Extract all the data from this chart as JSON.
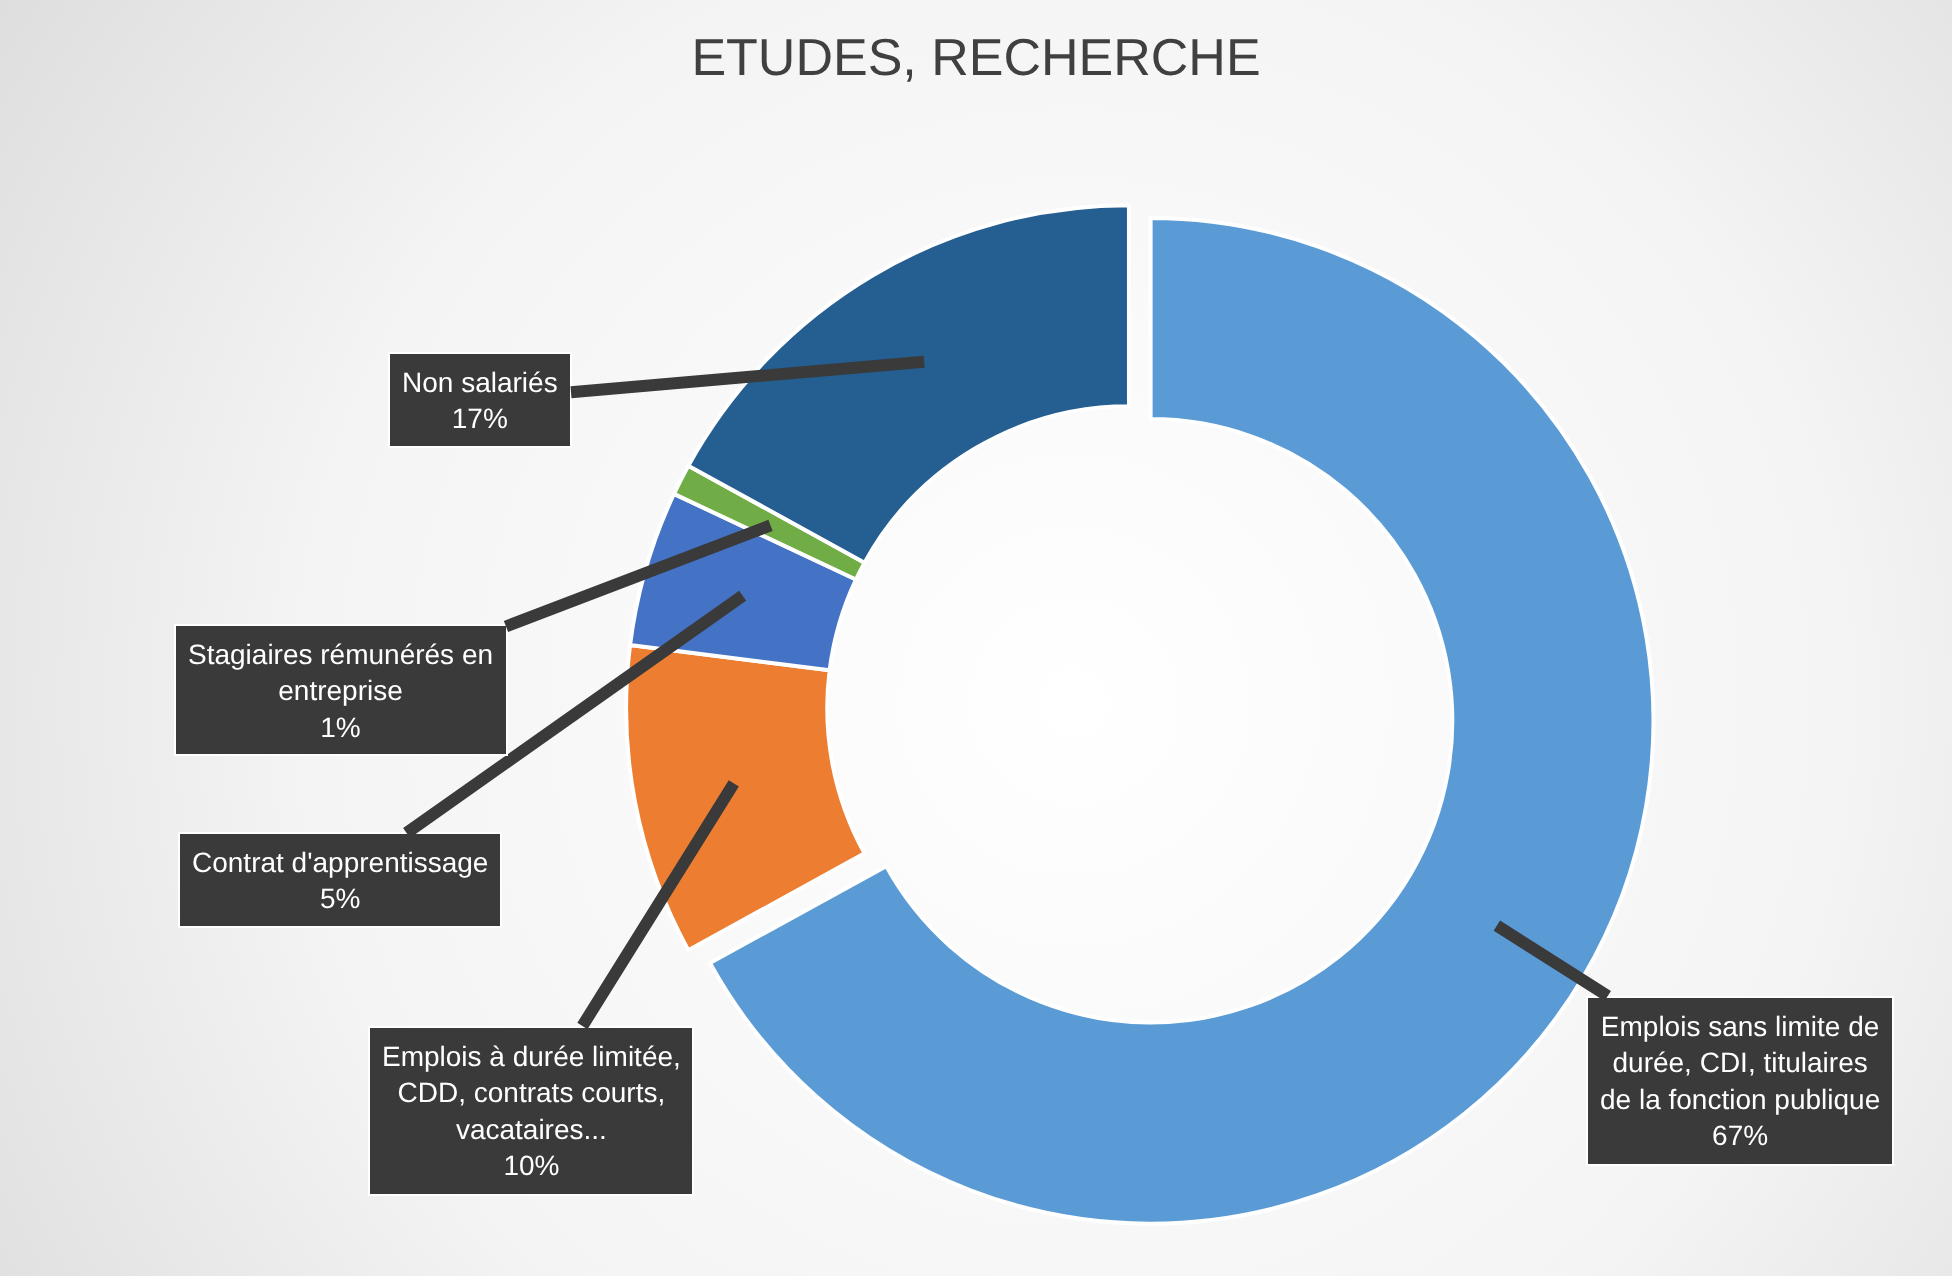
{
  "chart_data": {
    "type": "donut",
    "title": "ETUDES, RECHERCHE",
    "categories": [
      "Emplois sans limite de durée, CDI, titulaires de la fonction publique",
      "Emplois à durée limitée, CDD, contrats courts, vacataires...",
      "Contrat d'apprentissage",
      "Stagiaires rémunérés en entreprise",
      "Non salariés"
    ],
    "values": [
      67,
      10,
      5,
      1,
      17
    ],
    "value_labels": [
      "67%",
      "10%",
      "5%",
      "1%",
      "17%"
    ],
    "colors": [
      "#5b9bd5",
      "#ed7d31",
      "#4472c4",
      "#70ad47",
      "#255e91"
    ]
  }
}
